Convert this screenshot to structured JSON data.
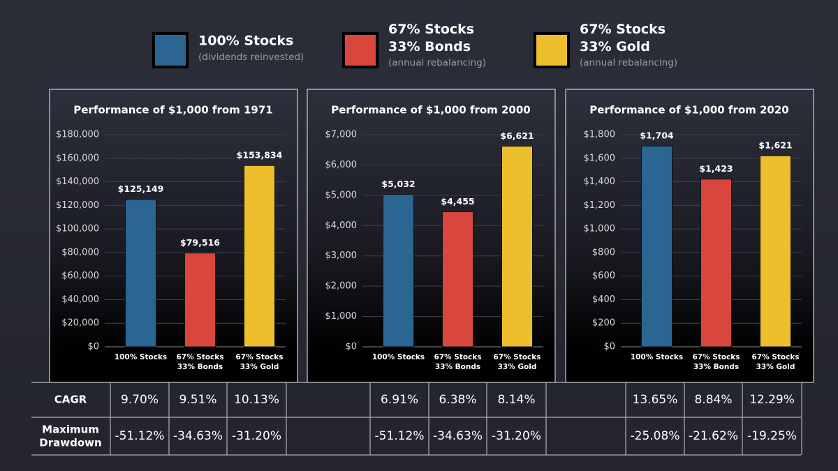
{
  "legend": [
    {
      "name": "100% Stocks",
      "note": "(dividends reinvested)",
      "color": "#2b6592"
    },
    {
      "name": "67% Stocks\n33% Bonds",
      "note": "(annual rebalancing)",
      "color": "#d9463e"
    },
    {
      "name": "67% Stocks\n33% Gold",
      "note": "(annual rebalancing)",
      "color": "#eebf2d"
    }
  ],
  "chart_data": [
    {
      "type": "bar",
      "title": "Performance of $1,000 from 1971",
      "categories": [
        "100% Stocks",
        "67% Stocks\n33% Bonds",
        "67% Stocks\n33% Gold"
      ],
      "values": [
        125149,
        79516,
        153834
      ],
      "value_labels": [
        "$125,149",
        "$79,516",
        "$153,834"
      ],
      "colors": [
        "#2b6592",
        "#d9463e",
        "#eebf2d"
      ],
      "ylim": [
        0,
        180000
      ],
      "yticks": [
        {
          "value": 0,
          "label": "$0"
        },
        {
          "value": 20000,
          "label": "$20,000"
        },
        {
          "value": 40000,
          "label": "$40,000"
        },
        {
          "value": 60000,
          "label": "$60,000"
        },
        {
          "value": 80000,
          "label": "$80,000"
        },
        {
          "value": 100000,
          "label": "$100,000"
        },
        {
          "value": 120000,
          "label": "$120,000"
        },
        {
          "value": 140000,
          "label": "$140,000"
        },
        {
          "value": 160000,
          "label": "$160,000"
        },
        {
          "value": 180000,
          "label": "$180,000"
        }
      ],
      "grid": true
    },
    {
      "type": "bar",
      "title": "Performance of $1,000 from 2000",
      "categories": [
        "100% Stocks",
        "67% Stocks\n33% Bonds",
        "67% Stocks\n33% Gold"
      ],
      "values": [
        5032,
        4455,
        6621
      ],
      "value_labels": [
        "$5,032",
        "$4,455",
        "$6,621"
      ],
      "colors": [
        "#2b6592",
        "#d9463e",
        "#eebf2d"
      ],
      "ylim": [
        0,
        7000
      ],
      "yticks": [
        {
          "value": 0,
          "label": "$0"
        },
        {
          "value": 1000,
          "label": "$1,000"
        },
        {
          "value": 2000,
          "label": "$2,000"
        },
        {
          "value": 3000,
          "label": "$3,000"
        },
        {
          "value": 4000,
          "label": "$4,000"
        },
        {
          "value": 5000,
          "label": "$5,000"
        },
        {
          "value": 6000,
          "label": "$6,000"
        },
        {
          "value": 7000,
          "label": "$7,000"
        }
      ],
      "grid": true
    },
    {
      "type": "bar",
      "title": "Performance of $1,000 from 2020",
      "categories": [
        "100% Stocks",
        "67% Stocks\n33% Bonds",
        "67% Stocks\n33% Gold"
      ],
      "values": [
        1704,
        1423,
        1621
      ],
      "value_labels": [
        "$1,704",
        "$1,423",
        "$1,621"
      ],
      "colors": [
        "#2b6592",
        "#d9463e",
        "#eebf2d"
      ],
      "ylim": [
        0,
        1800
      ],
      "yticks": [
        {
          "value": 0,
          "label": "$0"
        },
        {
          "value": 200,
          "label": "$200"
        },
        {
          "value": 400,
          "label": "$400"
        },
        {
          "value": 600,
          "label": "$600"
        },
        {
          "value": 800,
          "label": "$800"
        },
        {
          "value": 1000,
          "label": "$1,000"
        },
        {
          "value": 1200,
          "label": "$1,200"
        },
        {
          "value": 1400,
          "label": "$1,400"
        },
        {
          "value": 1600,
          "label": "$1,600"
        },
        {
          "value": 1800,
          "label": "$1,800"
        }
      ],
      "grid": true
    }
  ],
  "table": {
    "rows": [
      {
        "label": "CAGR",
        "groups": [
          [
            "9.70%",
            "9.51%",
            "10.13%"
          ],
          [
            "6.91%",
            "6.38%",
            "8.14%"
          ],
          [
            "13.65%",
            "8.84%",
            "12.29%"
          ]
        ]
      },
      {
        "label": "Maximum\nDrawdown",
        "groups": [
          [
            "-51.12%",
            "-34.63%",
            "-31.20%"
          ],
          [
            "-51.12%",
            "-34.63%",
            "-31.20%"
          ],
          [
            "-25.08%",
            "-21.62%",
            "-19.25%"
          ]
        ]
      }
    ]
  }
}
